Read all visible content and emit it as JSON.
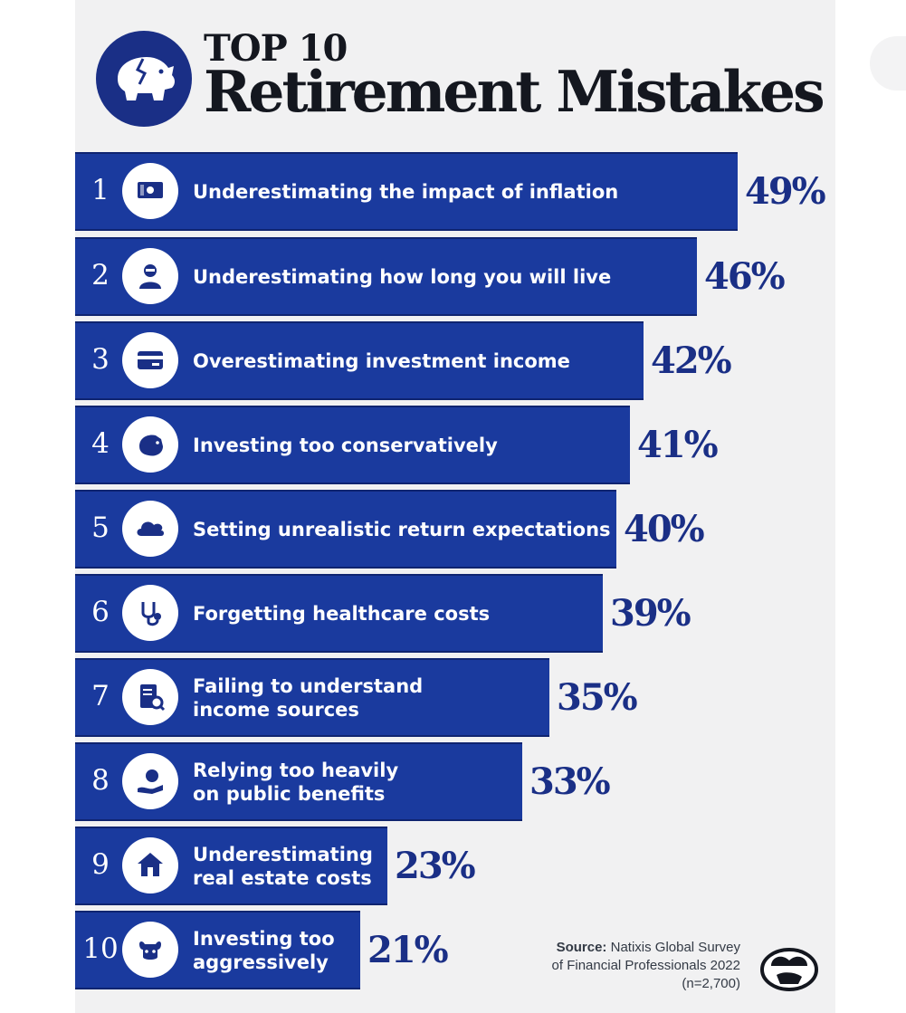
{
  "header": {
    "title_top": "TOP 10",
    "title_main": "Retirement Mistakes",
    "icon": "broken-piggy-bank-icon"
  },
  "colors": {
    "bar": "#1a3a9e",
    "bar_dark": "#0f2470",
    "value_text": "#1a2f86",
    "panel": "#f1f1f2"
  },
  "chart_data": {
    "type": "bar",
    "orientation": "horizontal",
    "categories": [
      "Underestimating the impact of inflation",
      "Underestimating how long you will live",
      "Overestimating investment income",
      "Investing too conservatively",
      "Setting unrealistic return expectations",
      "Forgetting healthcare costs",
      "Failing to understand income sources",
      "Relying too heavily on public benefits",
      "Underestimating real estate costs",
      "Investing too aggressively"
    ],
    "values": [
      49,
      46,
      42,
      41,
      40,
      39,
      35,
      33,
      23,
      21
    ],
    "value_labels": [
      "49%",
      "46%",
      "42%",
      "41%",
      "40%",
      "39%",
      "35%",
      "33%",
      "23%",
      "21%"
    ],
    "ranks": [
      "1",
      "2",
      "3",
      "4",
      "5",
      "6",
      "7",
      "8",
      "9",
      "10"
    ],
    "label_lines": [
      [
        "Underestimating the impact of inflation"
      ],
      [
        "Underestimating how long you will live"
      ],
      [
        "Overestimating investment income"
      ],
      [
        "Investing too conservatively"
      ],
      [
        "Setting unrealistic return expectations"
      ],
      [
        "Forgetting healthcare costs"
      ],
      [
        "Failing to understand",
        "income sources"
      ],
      [
        "Relying too heavily",
        "on public benefits"
      ],
      [
        "Underestimating",
        "real estate costs"
      ],
      [
        "Investing too",
        "aggressively"
      ]
    ],
    "icons": [
      "cash-icon",
      "elderly-person-icon",
      "credit-card-icon",
      "bear-icon",
      "cloud-icon",
      "stethoscope-icon",
      "document-search-icon",
      "hand-coin-icon",
      "house-icon",
      "bull-icon"
    ],
    "unit": "%"
  },
  "source": {
    "label": "Source:",
    "line1": "Natixis Global Survey",
    "line2": "of Financial Professionals 2022",
    "line3": "(n=2,700)"
  },
  "brand_icon": "piggy-bank-logo-icon"
}
